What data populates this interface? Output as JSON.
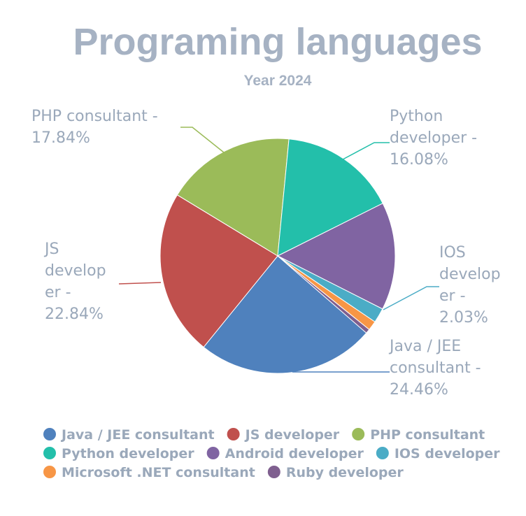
{
  "chart_data": {
    "type": "pie",
    "title": "Programing languages",
    "subtitle": "Year 2024",
    "series": [
      {
        "name": "Java / JEE consultant",
        "value": 24.46,
        "color": "#4f81bd",
        "label_lines": [
          "Java / JEE",
          "consultant -",
          "24.46%"
        ]
      },
      {
        "name": "JS developer",
        "value": 22.84,
        "color": "#c0504d",
        "label_lines": [
          "JS",
          "develop",
          "er -",
          "22.84%"
        ]
      },
      {
        "name": "PHP consultant",
        "value": 17.84,
        "color": "#9bbb59",
        "label_lines": [
          "PHP consultant -",
          "17.84%"
        ]
      },
      {
        "name": "Python developer",
        "value": 16.08,
        "color": "#23bfaa",
        "label_lines": [
          "Python",
          "developer -",
          "16.08%"
        ]
      },
      {
        "name": "Android developer",
        "value": 14.85,
        "color": "#8064a2",
        "label_lines": []
      },
      {
        "name": "IOS developer",
        "value": 2.03,
        "color": "#4bacc6",
        "label_lines": [
          "IOS",
          "develop",
          "er -",
          "2.03%"
        ]
      },
      {
        "name": "Microsoft .NET consultant",
        "value": 1.3,
        "color": "#f79646",
        "label_lines": []
      },
      {
        "name": "Ruby developer",
        "value": 0.6,
        "color": "#7f5f8f",
        "label_lines": []
      }
    ],
    "legend": {
      "position": "bottom",
      "rows": [
        [
          "Java / JEE consultant",
          "JS developer",
          "PHP consultant"
        ],
        [
          "Python developer",
          "Android developer",
          "IOS developer"
        ],
        [
          "Microsoft .NET consultant",
          "Ruby developer"
        ]
      ]
    }
  }
}
